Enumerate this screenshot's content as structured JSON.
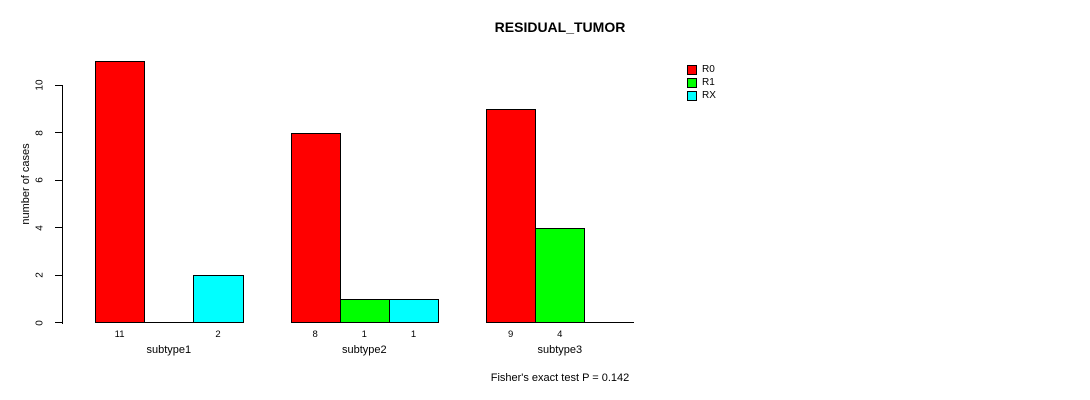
{
  "chart_data": {
    "type": "bar",
    "title": "RESIDUAL_TUMOR",
    "categories": [
      "subtype1",
      "subtype2",
      "subtype3"
    ],
    "series": [
      {
        "name": "R0",
        "color": "#ff0000",
        "values": [
          11,
          8,
          9
        ]
      },
      {
        "name": "R1",
        "color": "#00ff00",
        "values": [
          0,
          1,
          4
        ]
      },
      {
        "name": "RX",
        "color": "#00ffff",
        "values": [
          2,
          1,
          0
        ]
      }
    ],
    "ylabel": "number of cases",
    "xlabel": "",
    "yticks": [
      0,
      2,
      4,
      6,
      8,
      10
    ],
    "ylim": [
      0,
      10
    ],
    "grid": false,
    "legend_position": "top-right",
    "value_labels": "non-zero values shown under bars",
    "annotation": "Fisher's exact test P = 0.142"
  }
}
